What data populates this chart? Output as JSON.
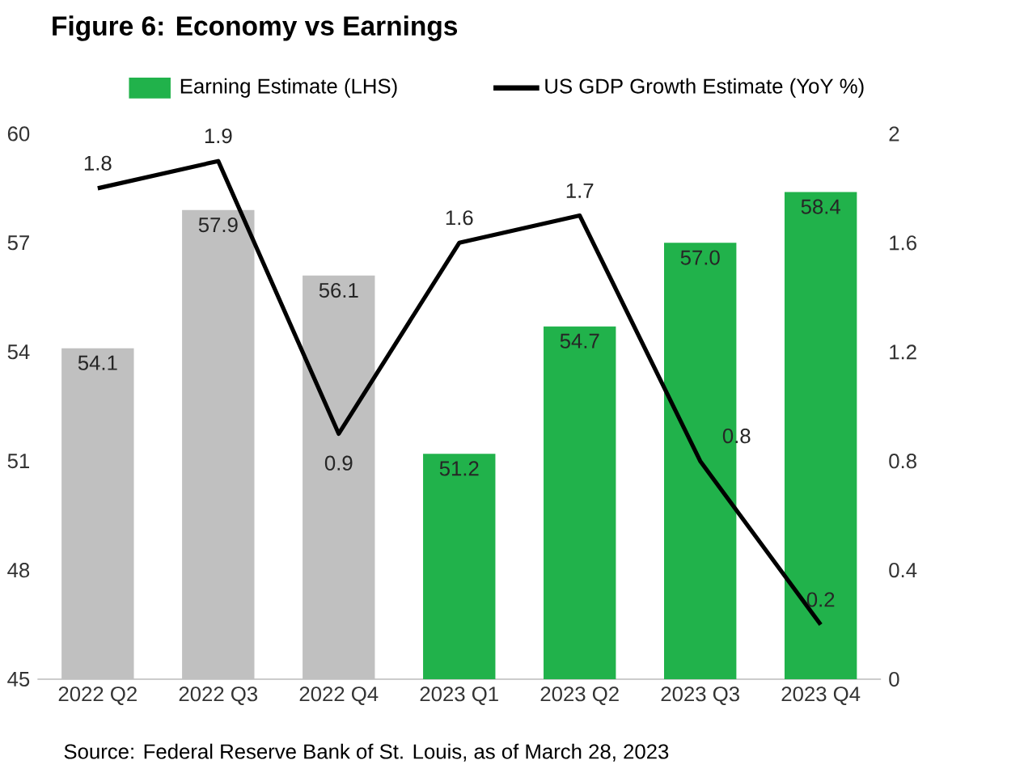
{
  "chart_data": {
    "type": "bar",
    "title": "Figure 6: Economy vs Earnings",
    "categories": [
      "2022 Q2",
      "2022 Q3",
      "2022 Q4",
      "2023 Q1",
      "2023 Q2",
      "2023 Q3",
      "2023 Q4"
    ],
    "series": [
      {
        "name": "Earning Estimate (LHS)",
        "color": "#21b24b",
        "colors": [
          "#c0c0c0",
          "#c0c0c0",
          "#c0c0c0",
          "#21b24b",
          "#21b24b",
          "#21b24b",
          "#21b24b"
        ],
        "values": [
          54.1,
          57.9,
          56.1,
          51.2,
          54.7,
          57.0,
          58.4
        ],
        "value_labels": [
          "54.1",
          "57.9",
          "56.1",
          "51.2",
          "54.7",
          "57.0",
          "58.4"
        ]
      },
      {
        "name": "US GDP Growth Estimate (YoY %)",
        "type": "line",
        "axis": "y2",
        "color": "#000000",
        "values": [
          1.8,
          1.9,
          0.9,
          1.6,
          1.7,
          0.8,
          0.2
        ],
        "value_labels": [
          "1.8",
          "1.9",
          "0.9",
          "1.6",
          "1.7",
          "0.8",
          "0.2"
        ]
      }
    ],
    "ylim": [
      45,
      60
    ],
    "yticks": [
      45,
      48,
      51,
      54,
      57,
      60
    ],
    "y2lim": [
      0,
      2
    ],
    "y2ticks": [
      0,
      0.4,
      0.8,
      1.2,
      1.6,
      2
    ],
    "legend": "top",
    "grid": false,
    "marker": "none",
    "line_style": "solid",
    "annotations": [
      "Source: Federal Reserve Bank of St. Louis, as of March 28, 2023"
    ]
  }
}
